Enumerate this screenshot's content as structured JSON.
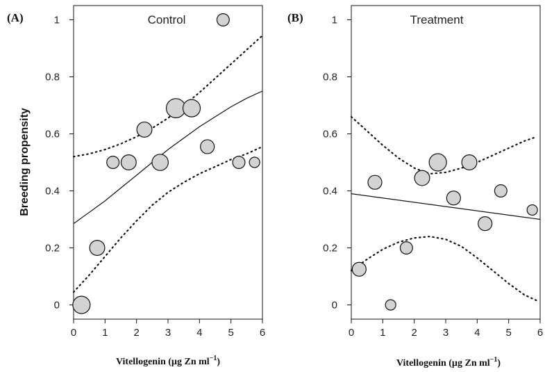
{
  "chart_data": [
    {
      "type": "scatter",
      "panel_label": "(A)",
      "title": "Control",
      "xlabel": "Vitellogenin (µg Zn ml",
      "xlabel_sup": "−1",
      "xlabel_end": ")",
      "ylabel": "Breeding propensity",
      "xlim": [
        0,
        6
      ],
      "ylim": [
        -0.05,
        1.05
      ],
      "x_ticks": [
        0,
        1,
        2,
        3,
        4,
        5,
        6
      ],
      "y_ticks": [
        0,
        0.2,
        0.4,
        0.6,
        0.8,
        1
      ],
      "x_tick_labels": [
        "0",
        "1",
        "2",
        "3",
        "4",
        "5",
        "6"
      ],
      "y_tick_labels": [
        "0",
        "0.2",
        "0.4",
        "0.6",
        "0.8",
        "1"
      ],
      "points": [
        {
          "x": 0.25,
          "y": 0.0,
          "weight": 6
        },
        {
          "x": 0.75,
          "y": 0.2,
          "weight": 4
        },
        {
          "x": 1.25,
          "y": 0.5,
          "weight": 2
        },
        {
          "x": 1.75,
          "y": 0.5,
          "weight": 4
        },
        {
          "x": 2.25,
          "y": 0.615,
          "weight": 4
        },
        {
          "x": 2.75,
          "y": 0.5,
          "weight": 5
        },
        {
          "x": 3.25,
          "y": 0.69,
          "weight": 8
        },
        {
          "x": 3.75,
          "y": 0.69,
          "weight": 6
        },
        {
          "x": 4.25,
          "y": 0.555,
          "weight": 3
        },
        {
          "x": 4.75,
          "y": 1.0,
          "weight": 2
        },
        {
          "x": 5.25,
          "y": 0.5,
          "weight": 2
        },
        {
          "x": 5.75,
          "y": 0.5,
          "weight": 1
        }
      ],
      "fit": {
        "x": [
          0.0,
          0.5,
          1.0,
          1.5,
          2.0,
          2.5,
          3.0,
          3.5,
          4.0,
          4.5,
          5.0,
          5.5,
          6.0
        ],
        "y": [
          0.285,
          0.325,
          0.365,
          0.41,
          0.455,
          0.5,
          0.545,
          0.585,
          0.625,
          0.66,
          0.695,
          0.725,
          0.75
        ]
      },
      "ci_upper": {
        "x": [
          0.0,
          0.5,
          1.0,
          1.5,
          2.0,
          2.5,
          3.0,
          3.5,
          4.0,
          4.5,
          5.0,
          5.5,
          6.0
        ],
        "y": [
          0.52,
          0.53,
          0.545,
          0.565,
          0.59,
          0.62,
          0.655,
          0.7,
          0.745,
          0.795,
          0.845,
          0.895,
          0.945
        ]
      },
      "ci_lower": {
        "x": [
          0.0,
          0.5,
          1.0,
          1.5,
          2.0,
          2.5,
          3.0,
          3.5,
          4.0,
          4.5,
          5.0,
          5.5,
          6.0
        ],
        "y": [
          0.045,
          0.105,
          0.17,
          0.235,
          0.295,
          0.35,
          0.395,
          0.43,
          0.46,
          0.485,
          0.51,
          0.53,
          0.555
        ]
      },
      "grid": false,
      "legend": "none",
      "colors": {
        "marker_fill": "#d3d3d3",
        "marker_edge": "#111111",
        "line": "#111111"
      }
    },
    {
      "type": "scatter",
      "panel_label": "(B)",
      "title": "Treatment",
      "xlabel": "Vitellogenin (µg Zn ml",
      "xlabel_sup": "−1",
      "xlabel_end": ")",
      "ylabel": "",
      "xlim": [
        0,
        6
      ],
      "ylim": [
        -0.05,
        1.05
      ],
      "x_ticks": [
        0,
        1,
        2,
        3,
        4,
        5,
        6
      ],
      "y_ticks": [
        0,
        0.2,
        0.4,
        0.6,
        0.8,
        1
      ],
      "x_tick_labels": [
        "0",
        "1",
        "2",
        "3",
        "4",
        "5",
        "6"
      ],
      "y_tick_labels": [
        "0",
        "0.2",
        "0.4",
        "0.6",
        "0.8",
        "1"
      ],
      "points": [
        {
          "x": 0.25,
          "y": 0.125,
          "weight": 3
        },
        {
          "x": 0.75,
          "y": 0.43,
          "weight": 3
        },
        {
          "x": 1.25,
          "y": 0.0,
          "weight": 1
        },
        {
          "x": 1.75,
          "y": 0.2,
          "weight": 2
        },
        {
          "x": 2.25,
          "y": 0.445,
          "weight": 4
        },
        {
          "x": 2.75,
          "y": 0.5,
          "weight": 6
        },
        {
          "x": 3.25,
          "y": 0.375,
          "weight": 3
        },
        {
          "x": 3.75,
          "y": 0.5,
          "weight": 4
        },
        {
          "x": 4.25,
          "y": 0.285,
          "weight": 3
        },
        {
          "x": 4.75,
          "y": 0.4,
          "weight": 2
        },
        {
          "x": 5.75,
          "y": 0.333,
          "weight": 1
        }
      ],
      "fit": {
        "x": [
          0.0,
          6.0
        ],
        "y": [
          0.39,
          0.3
        ]
      },
      "ci_upper": {
        "x": [
          0.0,
          0.5,
          1.0,
          1.5,
          2.0,
          2.5,
          3.0,
          3.5,
          4.0,
          4.5,
          5.0,
          5.5,
          5.9
        ],
        "y": [
          0.66,
          0.61,
          0.56,
          0.515,
          0.48,
          0.46,
          0.465,
          0.48,
          0.5,
          0.525,
          0.55,
          0.575,
          0.59
        ]
      },
      "ci_lower": {
        "x": [
          0.0,
          0.5,
          1.0,
          1.5,
          2.0,
          2.5,
          3.0,
          3.5,
          4.0,
          4.5,
          5.0,
          5.5,
          5.9
        ],
        "y": [
          0.12,
          0.16,
          0.195,
          0.22,
          0.235,
          0.24,
          0.23,
          0.205,
          0.165,
          0.12,
          0.075,
          0.035,
          0.015
        ]
      },
      "grid": false,
      "legend": "none",
      "colors": {
        "marker_fill": "#d3d3d3",
        "marker_edge": "#111111",
        "line": "#111111"
      }
    }
  ]
}
